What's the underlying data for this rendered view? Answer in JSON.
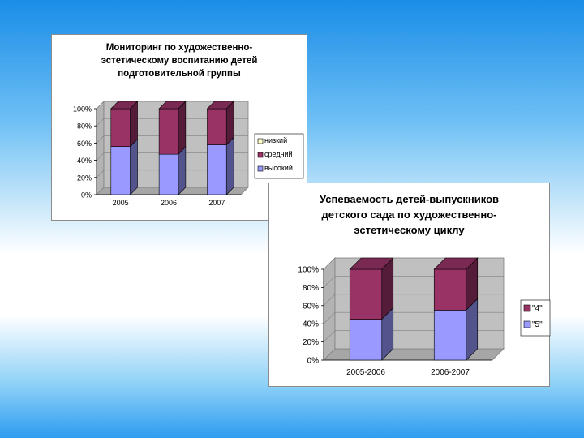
{
  "chart_data": [
    {
      "type": "bar",
      "stacked": true,
      "three_d": true,
      "title": "Мониторинг по художественно-\nэстетическому воспитанию детей\nподготовительной группы",
      "categories": [
        "2005",
        "2006",
        "2007"
      ],
      "y_ticks": [
        "100%",
        "80%",
        "60%",
        "40%",
        "20%",
        "0%"
      ],
      "ylim": [
        0,
        100
      ],
      "legend_position": "right",
      "series": [
        {
          "name": "высокий",
          "values": [
            56,
            47,
            58
          ],
          "color": "#9999ff"
        },
        {
          "name": "средний",
          "values": [
            44,
            53,
            42
          ],
          "color": "#993366"
        },
        {
          "name": "низкий",
          "values": [
            0,
            0,
            0
          ],
          "color": "#ffffcc"
        }
      ]
    },
    {
      "type": "bar",
      "stacked": true,
      "three_d": true,
      "title": "Успеваемость детей-выпускников\nдетского сада по художественно-\nэстетическому циклу",
      "categories": [
        "2005-2006",
        "2006-2007"
      ],
      "y_ticks": [
        "100%",
        "80%",
        "60%",
        "40%",
        "20%",
        "0%"
      ],
      "ylim": [
        0,
        100
      ],
      "legend_position": "right",
      "series": [
        {
          "name": "\"5\"",
          "values": [
            45,
            55
          ],
          "color": "#9999ff"
        },
        {
          "name": "\"4\"",
          "values": [
            55,
            45
          ],
          "color": "#993366"
        }
      ]
    }
  ]
}
